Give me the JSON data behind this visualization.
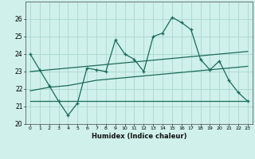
{
  "xlabel": "Humidex (Indice chaleur)",
  "x_values": [
    0,
    1,
    2,
    3,
    4,
    5,
    6,
    7,
    8,
    9,
    10,
    11,
    12,
    13,
    14,
    15,
    16,
    17,
    18,
    19,
    20,
    21,
    22,
    23
  ],
  "main_line": [
    24.0,
    23.1,
    22.2,
    21.3,
    20.5,
    21.2,
    23.2,
    23.1,
    23.0,
    24.8,
    24.0,
    23.7,
    23.0,
    25.0,
    25.2,
    26.1,
    25.8,
    25.4,
    23.7,
    23.1,
    23.6,
    22.5,
    21.8,
    21.3
  ],
  "trend1": [
    21.3,
    21.3,
    21.3,
    21.3,
    21.3,
    21.3,
    21.3,
    21.3,
    21.3,
    21.3,
    21.3,
    21.3,
    21.3,
    21.3,
    21.3,
    21.3,
    21.3,
    21.3,
    21.3,
    21.3,
    21.3,
    21.3,
    21.3,
    21.3
  ],
  "trend2": [
    21.9,
    22.0,
    22.1,
    22.15,
    22.2,
    22.3,
    22.4,
    22.5,
    22.55,
    22.6,
    22.65,
    22.7,
    22.75,
    22.8,
    22.85,
    22.9,
    22.95,
    23.0,
    23.05,
    23.1,
    23.15,
    23.2,
    23.25,
    23.3
  ],
  "trend3": [
    23.0,
    23.05,
    23.1,
    23.15,
    23.2,
    23.25,
    23.3,
    23.35,
    23.4,
    23.45,
    23.5,
    23.55,
    23.6,
    23.65,
    23.7,
    23.75,
    23.8,
    23.85,
    23.9,
    23.95,
    24.0,
    24.05,
    24.1,
    24.15
  ],
  "line_color": "#1a6b5a",
  "bg_color": "#cff0eb",
  "grid_color": "#aad8d0",
  "ylim": [
    20,
    27
  ],
  "yticks": [
    20,
    21,
    22,
    23,
    24,
    25,
    26
  ],
  "xlim": [
    -0.5,
    23.5
  ]
}
